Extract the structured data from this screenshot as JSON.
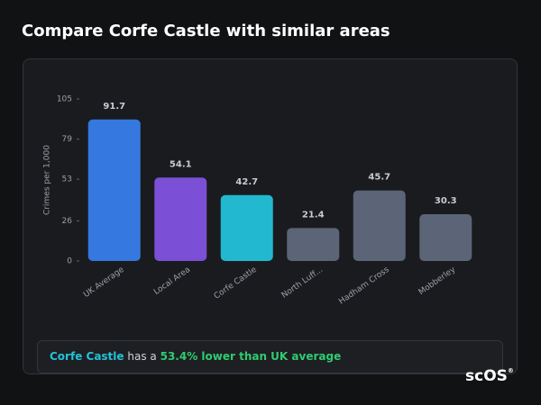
{
  "header": {
    "title": "Compare Corfe Castle with similar areas"
  },
  "chart_data": {
    "type": "bar",
    "y_label": "Crimes per 1,000",
    "categories": [
      "UK Average",
      "Local Area",
      "Corfe Castle",
      "North Luff...",
      "Hadham Cross",
      "Mobberley"
    ],
    "values": [
      91.7,
      54.1,
      42.7,
      21.4,
      45.7,
      30.3
    ],
    "colors": [
      "#3578e0",
      "#7b4fd6",
      "#22b8cf",
      "#5b6577",
      "#5b6577",
      "#5b6577"
    ],
    "ylim": [
      0,
      105
    ],
    "yticks": [
      0,
      26,
      53,
      79,
      105
    ],
    "grid": false
  },
  "footer": {
    "area": "Corfe Castle",
    "text": "has a",
    "highlight": "53.4% lower than UK average"
  },
  "logo": {
    "name": "scOS",
    "mark": "®"
  }
}
